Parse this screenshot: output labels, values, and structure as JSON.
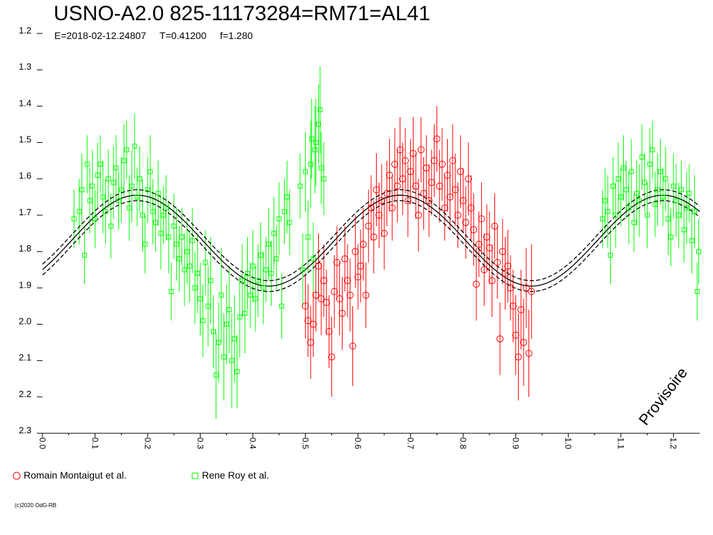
{
  "header": {
    "title": "USNO-A2.0 825-11173284=RM71=AL41",
    "subtitle": "E=2018-02-12.24807     T=0.41200     f=1.280"
  },
  "legend": [
    {
      "label": "Romain Montaigut et al.",
      "marker": "circle",
      "color": "#ff0000"
    },
    {
      "label": "Rene Roy et al.",
      "marker": "square",
      "color": "#00ff00"
    }
  ],
  "watermark": "Provisoire",
  "footer": {
    "copyright": "(c)2020 OdG-RB"
  },
  "colors": {
    "red": "#ff0000",
    "green": "#00ff00",
    "model": "#000000",
    "background": "#ffffff"
  },
  "chart_data": {
    "type": "scatter",
    "xlim": [
      0.0,
      1.25
    ],
    "ylim": [
      1.2,
      2.3
    ],
    "y_inverted": true,
    "grid": false,
    "x_ticks": [
      "0.0",
      "0.1",
      "0.2",
      "0.3",
      "0.4",
      "0.5",
      "0.6",
      "0.7",
      "0.8",
      "0.9",
      "1.0",
      "1.1",
      "1.2"
    ],
    "y_ticks": [
      "1.2",
      "1.3",
      "1.4",
      "1.5",
      "1.6",
      "1.7",
      "1.8",
      "1.9",
      "2.0",
      "2.1",
      "2.2",
      "2.3"
    ],
    "model": {
      "type": "sinusoid",
      "mean": 1.77,
      "amplitude": 0.125,
      "peak_phase": 0.18,
      "period": 0.5,
      "offsets": [
        -0.015,
        0.0,
        0.015
      ],
      "styles": [
        "dashed",
        "solid",
        "dashed"
      ]
    },
    "series": [
      {
        "name": "Rene Roy et al.",
        "marker": "square",
        "color": "#00ff00",
        "points": [
          [
            0.06,
            1.71,
            0.08
          ],
          [
            0.07,
            1.69,
            0.09
          ],
          [
            0.075,
            1.63,
            0.1
          ],
          [
            0.08,
            1.81,
            0.08
          ],
          [
            0.085,
            1.56,
            0.08
          ],
          [
            0.09,
            1.66,
            0.09
          ],
          [
            0.095,
            1.62,
            0.1
          ],
          [
            0.1,
            1.71,
            0.08
          ],
          [
            0.105,
            1.59,
            0.09
          ],
          [
            0.11,
            1.56,
            0.08
          ],
          [
            0.115,
            1.65,
            0.1
          ],
          [
            0.12,
            1.69,
            0.09
          ],
          [
            0.125,
            1.6,
            0.08
          ],
          [
            0.13,
            1.73,
            0.09
          ],
          [
            0.135,
            1.61,
            0.1
          ],
          [
            0.14,
            1.57,
            0.09
          ],
          [
            0.145,
            1.66,
            0.08
          ],
          [
            0.15,
            1.63,
            0.09
          ],
          [
            0.155,
            1.55,
            0.1
          ],
          [
            0.16,
            1.52,
            0.08
          ],
          [
            0.165,
            1.68,
            0.09
          ],
          [
            0.17,
            1.62,
            0.1
          ],
          [
            0.175,
            1.51,
            0.09
          ],
          [
            0.18,
            1.65,
            0.08
          ],
          [
            0.185,
            1.6,
            0.09
          ],
          [
            0.19,
            1.7,
            0.1
          ],
          [
            0.195,
            1.78,
            0.08
          ],
          [
            0.2,
            1.63,
            0.09
          ],
          [
            0.205,
            1.58,
            0.1
          ],
          [
            0.21,
            1.69,
            0.09
          ],
          [
            0.215,
            1.72,
            0.08
          ],
          [
            0.22,
            1.64,
            0.09
          ],
          [
            0.225,
            1.75,
            0.1
          ],
          [
            0.23,
            1.7,
            0.08
          ],
          [
            0.235,
            1.68,
            0.09
          ],
          [
            0.24,
            1.76,
            0.1
          ],
          [
            0.245,
            1.91,
            0.08
          ],
          [
            0.25,
            1.73,
            0.09
          ],
          [
            0.255,
            1.78,
            0.1
          ],
          [
            0.26,
            1.82,
            0.09
          ],
          [
            0.265,
            1.76,
            0.08
          ],
          [
            0.27,
            1.85,
            0.1
          ],
          [
            0.275,
            1.8,
            0.09
          ],
          [
            0.28,
            1.84,
            0.1
          ],
          [
            0.285,
            1.77,
            0.09
          ],
          [
            0.29,
            1.9,
            0.1
          ],
          [
            0.295,
            1.86,
            0.11
          ],
          [
            0.3,
            1.93,
            0.1
          ],
          [
            0.305,
            1.99,
            0.1
          ],
          [
            0.31,
            1.83,
            0.09
          ],
          [
            0.315,
            1.95,
            0.11
          ],
          [
            0.32,
            1.88,
            0.12
          ],
          [
            0.325,
            2.02,
            0.1
          ],
          [
            0.33,
            2.14,
            0.12
          ],
          [
            0.335,
            2.05,
            0.11
          ],
          [
            0.34,
            1.92,
            0.13
          ],
          [
            0.345,
            2.09,
            0.12
          ],
          [
            0.35,
            2.0,
            0.11
          ],
          [
            0.355,
            1.96,
            0.12
          ],
          [
            0.36,
            2.1,
            0.13
          ],
          [
            0.365,
            2.04,
            0.12
          ],
          [
            0.37,
            2.13,
            0.1
          ],
          [
            0.375,
            1.98,
            0.11
          ],
          [
            0.38,
            1.88,
            0.1
          ],
          [
            0.385,
            1.97,
            0.11
          ],
          [
            0.39,
            1.86,
            0.1
          ],
          [
            0.395,
            1.92,
            0.09
          ],
          [
            0.4,
            1.84,
            0.1
          ],
          [
            0.405,
            1.93,
            0.09
          ],
          [
            0.41,
            1.88,
            0.1
          ],
          [
            0.415,
            1.81,
            0.09
          ],
          [
            0.42,
            1.9,
            0.1
          ],
          [
            0.425,
            1.85,
            0.09
          ],
          [
            0.43,
            1.78,
            0.1
          ],
          [
            0.435,
            1.86,
            0.09
          ],
          [
            0.44,
            1.75,
            0.1
          ],
          [
            0.445,
            1.82,
            0.09
          ],
          [
            0.45,
            1.71,
            0.1
          ],
          [
            0.455,
            1.95,
            0.09
          ],
          [
            0.46,
            1.69,
            0.09
          ],
          [
            0.465,
            1.65,
            0.1
          ],
          [
            0.47,
            1.72,
            0.09
          ],
          [
            0.49,
            1.62,
            0.09
          ],
          [
            0.495,
            1.85,
            0.1
          ],
          [
            0.5,
            1.58,
            0.11
          ],
          [
            0.505,
            1.76,
            0.1
          ],
          [
            0.51,
            1.56,
            0.12
          ],
          [
            0.512,
            1.49,
            0.11
          ],
          [
            0.515,
            1.82,
            0.1
          ],
          [
            0.518,
            1.52,
            0.12
          ],
          [
            0.52,
            1.5,
            0.12
          ],
          [
            0.525,
            1.45,
            0.11
          ],
          [
            0.528,
            1.41,
            0.12
          ],
          [
            0.53,
            1.57,
            0.1
          ],
          [
            0.535,
            1.6,
            0.1
          ],
          [
            1.065,
            1.71,
            0.08
          ],
          [
            1.07,
            1.66,
            0.09
          ],
          [
            1.075,
            1.69,
            0.1
          ],
          [
            1.08,
            1.81,
            0.08
          ],
          [
            1.085,
            1.62,
            0.08
          ],
          [
            1.09,
            1.7,
            0.09
          ],
          [
            1.095,
            1.6,
            0.1
          ],
          [
            1.1,
            1.65,
            0.08
          ],
          [
            1.105,
            1.57,
            0.09
          ],
          [
            1.11,
            1.63,
            0.08
          ],
          [
            1.115,
            1.68,
            0.1
          ],
          [
            1.12,
            1.58,
            0.09
          ],
          [
            1.125,
            1.72,
            0.08
          ],
          [
            1.13,
            1.64,
            0.09
          ],
          [
            1.135,
            1.66,
            0.1
          ],
          [
            1.14,
            1.54,
            0.09
          ],
          [
            1.145,
            1.61,
            0.08
          ],
          [
            1.15,
            1.7,
            0.09
          ],
          [
            1.155,
            1.56,
            0.1
          ],
          [
            1.16,
            1.52,
            0.08
          ],
          [
            1.165,
            1.67,
            0.09
          ],
          [
            1.17,
            1.63,
            0.1
          ],
          [
            1.175,
            1.58,
            0.09
          ],
          [
            1.18,
            1.65,
            0.08
          ],
          [
            1.185,
            1.6,
            0.09
          ],
          [
            1.19,
            1.71,
            0.1
          ],
          [
            1.195,
            1.76,
            0.08
          ],
          [
            1.2,
            1.62,
            0.09
          ],
          [
            1.205,
            1.66,
            0.1
          ],
          [
            1.21,
            1.7,
            0.09
          ],
          [
            1.215,
            1.63,
            0.08
          ],
          [
            1.22,
            1.74,
            0.09
          ],
          [
            1.225,
            1.68,
            0.1
          ],
          [
            1.23,
            1.64,
            0.08
          ],
          [
            1.235,
            1.77,
            0.09
          ],
          [
            1.24,
            1.69,
            0.1
          ],
          [
            1.245,
            1.91,
            0.08
          ],
          [
            1.248,
            1.8,
            0.09
          ]
        ]
      },
      {
        "name": "Romain Montaigut et al.",
        "marker": "circle",
        "color": "#ff0000",
        "points": [
          [
            0.5,
            1.95,
            0.09
          ],
          [
            0.505,
            1.99,
            0.1
          ],
          [
            0.51,
            2.05,
            0.1
          ],
          [
            0.515,
            2.0,
            0.09
          ],
          [
            0.52,
            1.92,
            0.1
          ],
          [
            0.525,
            1.84,
            0.09
          ],
          [
            0.53,
            1.93,
            0.1
          ],
          [
            0.535,
            1.88,
            0.1
          ],
          [
            0.54,
            1.94,
            0.09
          ],
          [
            0.545,
            2.02,
            0.1
          ],
          [
            0.55,
            2.09,
            0.11
          ],
          [
            0.555,
            1.91,
            0.1
          ],
          [
            0.56,
            1.83,
            0.1
          ],
          [
            0.565,
            1.93,
            0.1
          ],
          [
            0.57,
            1.97,
            0.1
          ],
          [
            0.575,
            1.82,
            0.09
          ],
          [
            0.58,
            1.88,
            0.1
          ],
          [
            0.585,
            1.92,
            0.1
          ],
          [
            0.59,
            2.06,
            0.11
          ],
          [
            0.595,
            1.8,
            0.1
          ],
          [
            0.6,
            1.87,
            0.09
          ],
          [
            0.605,
            1.84,
            0.1
          ],
          [
            0.61,
            1.78,
            0.1
          ],
          [
            0.615,
            1.92,
            0.09
          ],
          [
            0.62,
            1.73,
            0.1
          ],
          [
            0.625,
            1.68,
            0.09
          ],
          [
            0.63,
            1.76,
            0.1
          ],
          [
            0.635,
            1.63,
            0.1
          ],
          [
            0.64,
            1.7,
            0.09
          ],
          [
            0.645,
            1.66,
            0.1
          ],
          [
            0.65,
            1.75,
            0.1
          ],
          [
            0.655,
            1.64,
            0.09
          ],
          [
            0.66,
            1.59,
            0.1
          ],
          [
            0.665,
            1.68,
            0.09
          ],
          [
            0.67,
            1.56,
            0.1
          ],
          [
            0.675,
            1.62,
            0.1
          ],
          [
            0.68,
            1.52,
            0.09
          ],
          [
            0.685,
            1.6,
            0.1
          ],
          [
            0.69,
            1.55,
            0.09
          ],
          [
            0.695,
            1.66,
            0.1
          ],
          [
            0.7,
            1.58,
            0.09
          ],
          [
            0.705,
            1.53,
            0.1
          ],
          [
            0.71,
            1.62,
            0.09
          ],
          [
            0.715,
            1.7,
            0.1
          ],
          [
            0.72,
            1.52,
            0.09
          ],
          [
            0.725,
            1.64,
            0.1
          ],
          [
            0.73,
            1.57,
            0.09
          ],
          [
            0.735,
            1.66,
            0.1
          ],
          [
            0.74,
            1.61,
            0.09
          ],
          [
            0.745,
            1.55,
            0.1
          ],
          [
            0.75,
            1.49,
            0.09
          ],
          [
            0.755,
            1.62,
            0.1
          ],
          [
            0.76,
            1.56,
            0.1
          ],
          [
            0.765,
            1.68,
            0.09
          ],
          [
            0.77,
            1.59,
            0.1
          ],
          [
            0.775,
            1.65,
            0.09
          ],
          [
            0.78,
            1.55,
            0.1
          ],
          [
            0.785,
            1.63,
            0.1
          ],
          [
            0.79,
            1.7,
            0.09
          ],
          [
            0.795,
            1.58,
            0.1
          ],
          [
            0.8,
            1.66,
            0.09
          ],
          [
            0.805,
            1.72,
            0.1
          ],
          [
            0.81,
            1.6,
            0.1
          ],
          [
            0.815,
            1.68,
            0.09
          ],
          [
            0.82,
            1.74,
            0.1
          ],
          [
            0.825,
            1.89,
            0.1
          ],
          [
            0.83,
            1.78,
            0.09
          ],
          [
            0.835,
            1.71,
            0.1
          ],
          [
            0.84,
            1.85,
            0.1
          ],
          [
            0.845,
            1.76,
            0.09
          ],
          [
            0.85,
            1.79,
            0.1
          ],
          [
            0.855,
            1.88,
            0.1
          ],
          [
            0.86,
            1.73,
            0.09
          ],
          [
            0.865,
            1.83,
            0.1
          ],
          [
            0.87,
            2.04,
            0.1
          ],
          [
            0.875,
            1.8,
            0.09
          ],
          [
            0.88,
            1.86,
            0.1
          ],
          [
            0.885,
            1.84,
            0.1
          ],
          [
            0.89,
            1.9,
            0.09
          ],
          [
            0.895,
            1.95,
            0.1
          ],
          [
            0.9,
            2.03,
            0.11
          ],
          [
            0.905,
            2.09,
            0.12
          ],
          [
            0.91,
            1.96,
            0.11
          ],
          [
            0.915,
            2.05,
            0.12
          ],
          [
            0.92,
            1.9,
            0.11
          ],
          [
            0.925,
            2.08,
            0.12
          ],
          [
            0.93,
            1.91,
            0.13
          ]
        ]
      }
    ]
  }
}
